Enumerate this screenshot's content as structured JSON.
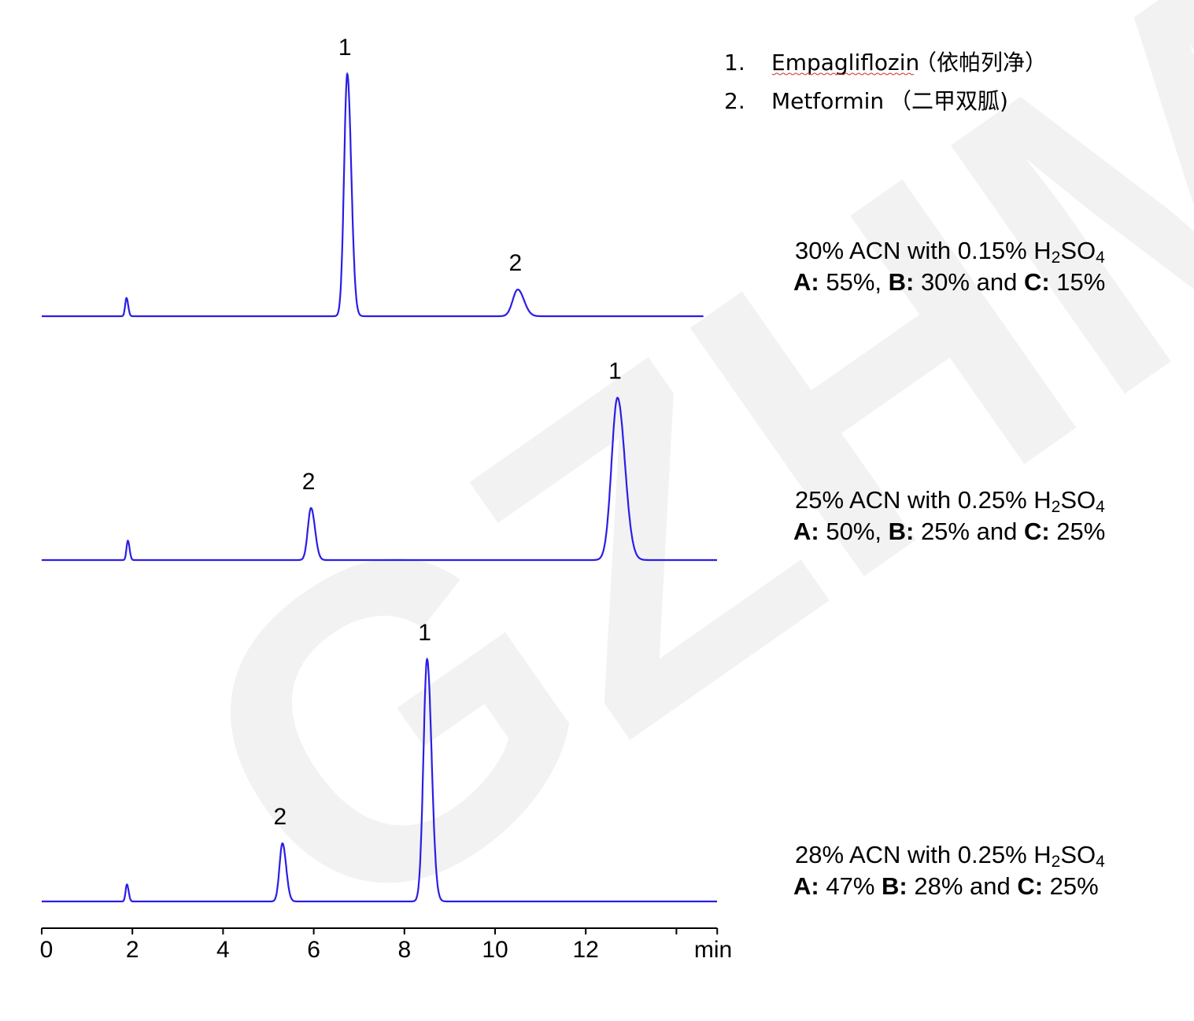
{
  "watermark": "GZHM",
  "legend": [
    {
      "num": "1.",
      "name": "Empagliflozin",
      "cn": "（依帕列净）"
    },
    {
      "num": "2.",
      "name": "Metformin",
      "cn": "（二甲双胍)"
    }
  ],
  "chart_data": {
    "type": "line",
    "xlabel": "min",
    "xlim": [
      0,
      14.9
    ],
    "x_ticks": [
      0,
      2,
      4,
      6,
      8,
      10,
      12,
      14
    ],
    "x_tick_labels": [
      "0",
      "2",
      "4",
      "6",
      "8",
      "10",
      "12",
      ""
    ],
    "y_units": "relative intensity (no axis shown)",
    "line_color": "#2a1ee6",
    "series": [
      {
        "end_time": 14.6,
        "condition": {
          "line1_prefix": "30% ACN with 0.15% ",
          "formula": {
            "h": "H",
            "two": "2",
            "so": "SO",
            "four": "4"
          },
          "a_label": "A:",
          "a_val": " 55%, ",
          "b_label": "B:",
          "b_val": " 30% and ",
          "c_label": "C:",
          "c_val": " 15%"
        },
        "peaks": [
          {
            "label": "",
            "rt": 1.87,
            "height": 7.5,
            "width": 0.03
          },
          {
            "label": "1",
            "rt": 6.74,
            "height": 100,
            "width": 0.07
          },
          {
            "label": "2",
            "rt": 10.5,
            "height": 11,
            "width": 0.11
          }
        ]
      },
      {
        "end_time": 14.9,
        "condition": {
          "line1_prefix": "25% ACN with 0.25% ",
          "formula": {
            "h": "H",
            "two": "2",
            "so": "SO",
            "four": "4"
          },
          "a_label": "A:",
          "a_val": " 50%, ",
          "b_label": "B:",
          "b_val": " 25% and ",
          "c_label": "C:",
          "c_val": " 25%"
        },
        "peaks": [
          {
            "label": "",
            "rt": 1.9,
            "height": 8,
            "width": 0.03
          },
          {
            "label": "2",
            "rt": 5.94,
            "height": 21.5,
            "width": 0.07
          },
          {
            "label": "1",
            "rt": 12.7,
            "height": 67,
            "width": 0.13
          }
        ]
      },
      {
        "end_time": 14.9,
        "condition": {
          "line1_prefix": "28% ACN with 0.25% ",
          "formula": {
            "h": "H",
            "two": "2",
            "so": "SO",
            "four": "4"
          },
          "a_label": "A:",
          "a_val": " 47% ",
          "b_label": "B:",
          "b_val": " 28% and ",
          "c_label": "C:",
          "c_val": " 25%"
        },
        "peaks": [
          {
            "label": "",
            "rt": 1.88,
            "height": 7,
            "width": 0.03
          },
          {
            "label": "2",
            "rt": 5.31,
            "height": 24,
            "width": 0.065
          },
          {
            "label": "1",
            "rt": 8.5,
            "height": 100,
            "width": 0.08
          }
        ]
      }
    ]
  }
}
